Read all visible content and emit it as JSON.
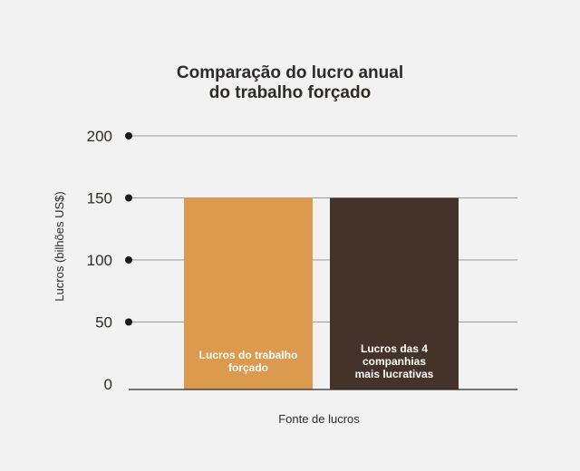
{
  "chart_data": {
    "type": "bar",
    "title_lines": [
      "Comparação do lucro anual",
      "do trabalho forçado"
    ],
    "xlabel": "Fonte de lucros",
    "ylabel": "Lucros (bilhões US$)",
    "ylim": [
      0,
      200
    ],
    "yticks": [
      0,
      50,
      100,
      150,
      200
    ],
    "grid": true,
    "categories": [
      {
        "label_lines": [
          "Lucros do trabalho",
          "forçado"
        ],
        "color": "#dc9a4f"
      },
      {
        "label_lines": [
          "Lucros das 4",
          "companhias",
          "mais lucrativas"
        ],
        "color": "#45332a"
      }
    ],
    "values": [
      150,
      150
    ]
  }
}
